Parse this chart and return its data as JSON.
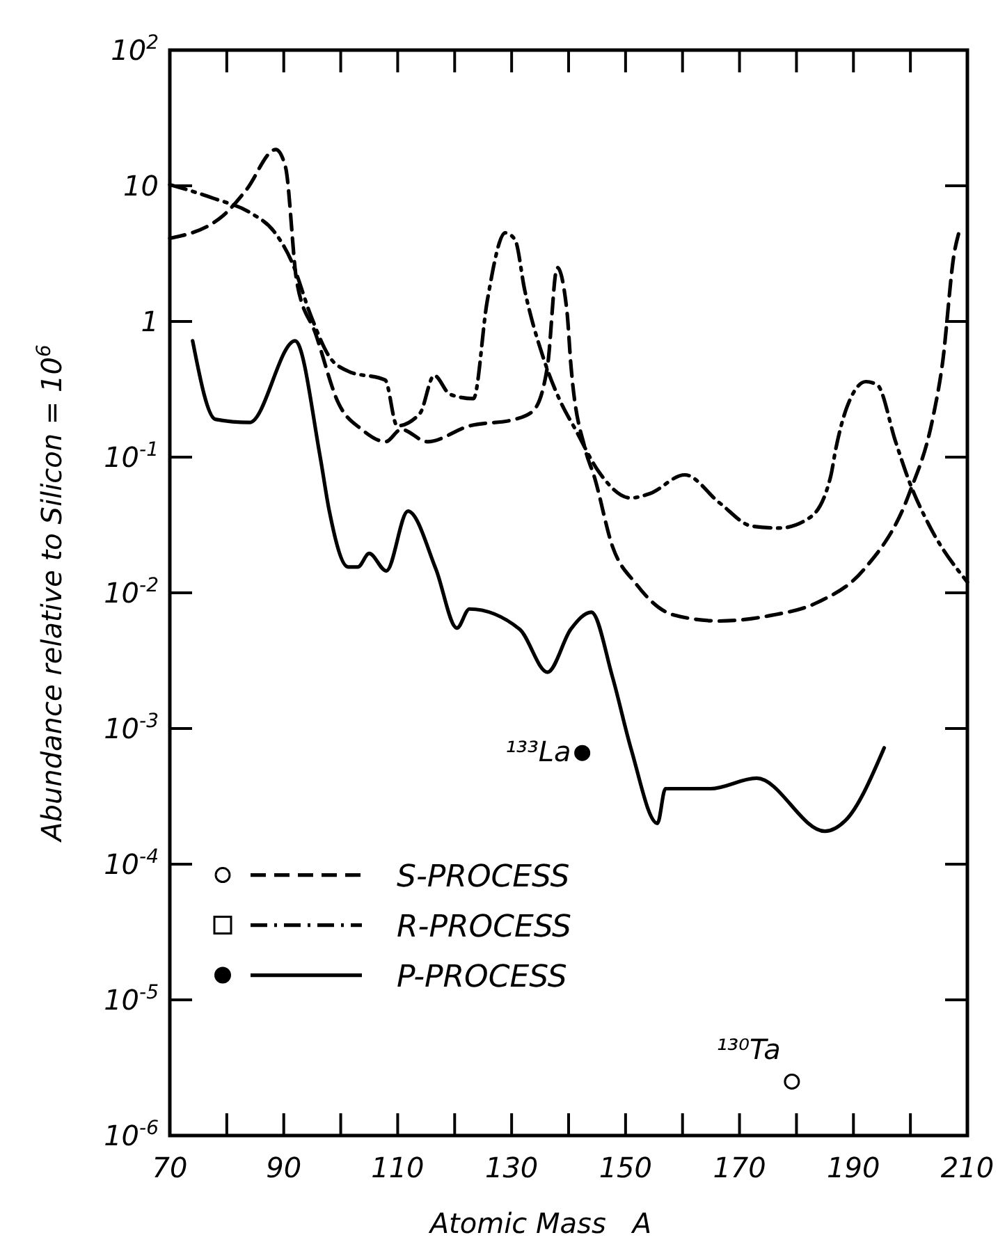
{
  "chart_data": {
    "type": "line",
    "xlabel": "Atomic Mass   A",
    "ylabel": "Abundance relative to Silicon = 10$^{6}$",
    "xlim": [
      70,
      210
    ],
    "xticks": [
      70,
      {
        "value": 80,
        "label": null
      },
      90,
      {
        "value": 100,
        "label": null
      },
      110,
      {
        "value": 120,
        "label": null
      },
      130,
      {
        "value": 140,
        "label": null
      },
      150,
      {
        "value": 160,
        "label": null
      },
      170,
      {
        "value": 180,
        "label": null
      },
      190,
      {
        "value": 200,
        "label": null
      },
      210
    ],
    "ylim": [
      1e-06,
      100
    ],
    "yticks": [
      {
        "value": 1e-06,
        "label": "10$^{-6}$"
      },
      {
        "value": 1e-05,
        "label": "10$^{-5}$"
      },
      {
        "value": 0.0001,
        "label": "10$^{-4}$"
      },
      {
        "value": 0.001,
        "label": "10$^{-3}$"
      },
      {
        "value": 0.01,
        "label": "10$^{-2}$"
      },
      {
        "value": 0.1,
        "label": "10$^{-1}$"
      },
      1,
      10,
      {
        "value": 100,
        "label": "10$^{2}$"
      }
    ],
    "log": "y",
    "grid": false,
    "legend": "left",
    "series": [
      {
        "name": "S-PROCESS",
        "color": "#000000",
        "line_style": "dashed",
        "x": [
          70,
          79.3,
          83.4,
          88.6,
          90.3,
          92.3,
          95.6,
          99.6,
          103.7,
          107.9,
          110.6,
          115.2,
          122.6,
          130.6,
          133.8,
          136.3,
          138,
          139.7,
          140.4,
          142.9,
          144.5,
          147.7,
          151.8,
          158.3,
          166.5,
          175.4,
          183.7,
          191.8,
          199.8,
          204,
          205.6,
          207.7,
          208.5
        ],
        "values": [
          4.1,
          6,
          9.3,
          18.5,
          13.8,
          1.95,
          0.81,
          0.25,
          0.16,
          0.13,
          0.16,
          0.13,
          0.17,
          0.19,
          0.22,
          0.47,
          2.5,
          1.2,
          0.48,
          0.115,
          0.072,
          0.022,
          0.0117,
          0.0069,
          0.0062,
          0.0068,
          0.0085,
          0.0148,
          0.054,
          0.2,
          0.48,
          3.2,
          4.5
        ]
      },
      {
        "name": "R-PROCESS",
        "color": "#000000",
        "line_style": "dashdot",
        "x": [
          70,
          77.6,
          84.2,
          88.3,
          91.5,
          94.7,
          98,
          101.3,
          107.8,
          109.9,
          113.9,
          116.4,
          119.2,
          123.3,
          125.7,
          128.9,
          130.6,
          132.3,
          135.5,
          138.7,
          141.2,
          145.3,
          150.9,
          154.3,
          160.4,
          166.5,
          172.2,
          177,
          182.4,
          186,
          186.9,
          188.8,
          192.2,
          194.2,
          197.4,
          199.8,
          203.2,
          210
        ],
        "values": [
          10.2,
          8.1,
          6.3,
          4.6,
          2.7,
          1.12,
          0.55,
          0.43,
          0.37,
          0.17,
          0.21,
          0.4,
          0.29,
          0.27,
          1.4,
          4.5,
          4,
          1.7,
          0.55,
          0.25,
          0.16,
          0.078,
          0.05,
          0.054,
          0.074,
          0.046,
          0.031,
          0.03,
          0.036,
          0.072,
          0.115,
          0.23,
          0.36,
          0.34,
          0.13,
          0.066,
          0.032,
          0.012
        ]
      },
      {
        "name": "P-PROCESS",
        "color": "#000000",
        "line_style": "solid",
        "x": [
          74,
          78,
          84,
          92,
          96.4,
          98,
          101.3,
          103,
          105,
          108,
          111.8,
          116.7,
          120.4,
          122.6,
          131.4,
          136.3,
          140.4,
          144,
          147.7,
          151,
          155.6,
          157,
          164.9,
          173,
          185,
          188.6,
          195.4
        ],
        "values": [
          0.72,
          0.19,
          0.18,
          0.72,
          0.1,
          0.04,
          0.0155,
          0.0155,
          0.0195,
          0.0145,
          0.04,
          0.015,
          0.0055,
          0.0076,
          0.0054,
          0.0026,
          0.0054,
          0.0072,
          0.0024,
          0.0007,
          0.0002,
          0.00036,
          0.00036,
          0.00043,
          0.000175,
          0.00021,
          0.00072
        ]
      },
      {
        "type": "scatter",
        "color": "#000000",
        "marker": "circle",
        "x": [
          142.4
        ],
        "values": [
          0.00066
        ]
      },
      {
        "type": "scatter",
        "color": "#ffffff",
        "marker": "circle",
        "x": [
          179.2
        ],
        "values": [
          2.5e-06
        ]
      }
    ],
    "annotations": [
      {
        "text": "¹³³La",
        "x": 142.4,
        "y": 0.00066
      },
      {
        "text": "¹³⁰Ta",
        "x": 179.2,
        "y": 2.5e-06
      }
    ]
  }
}
